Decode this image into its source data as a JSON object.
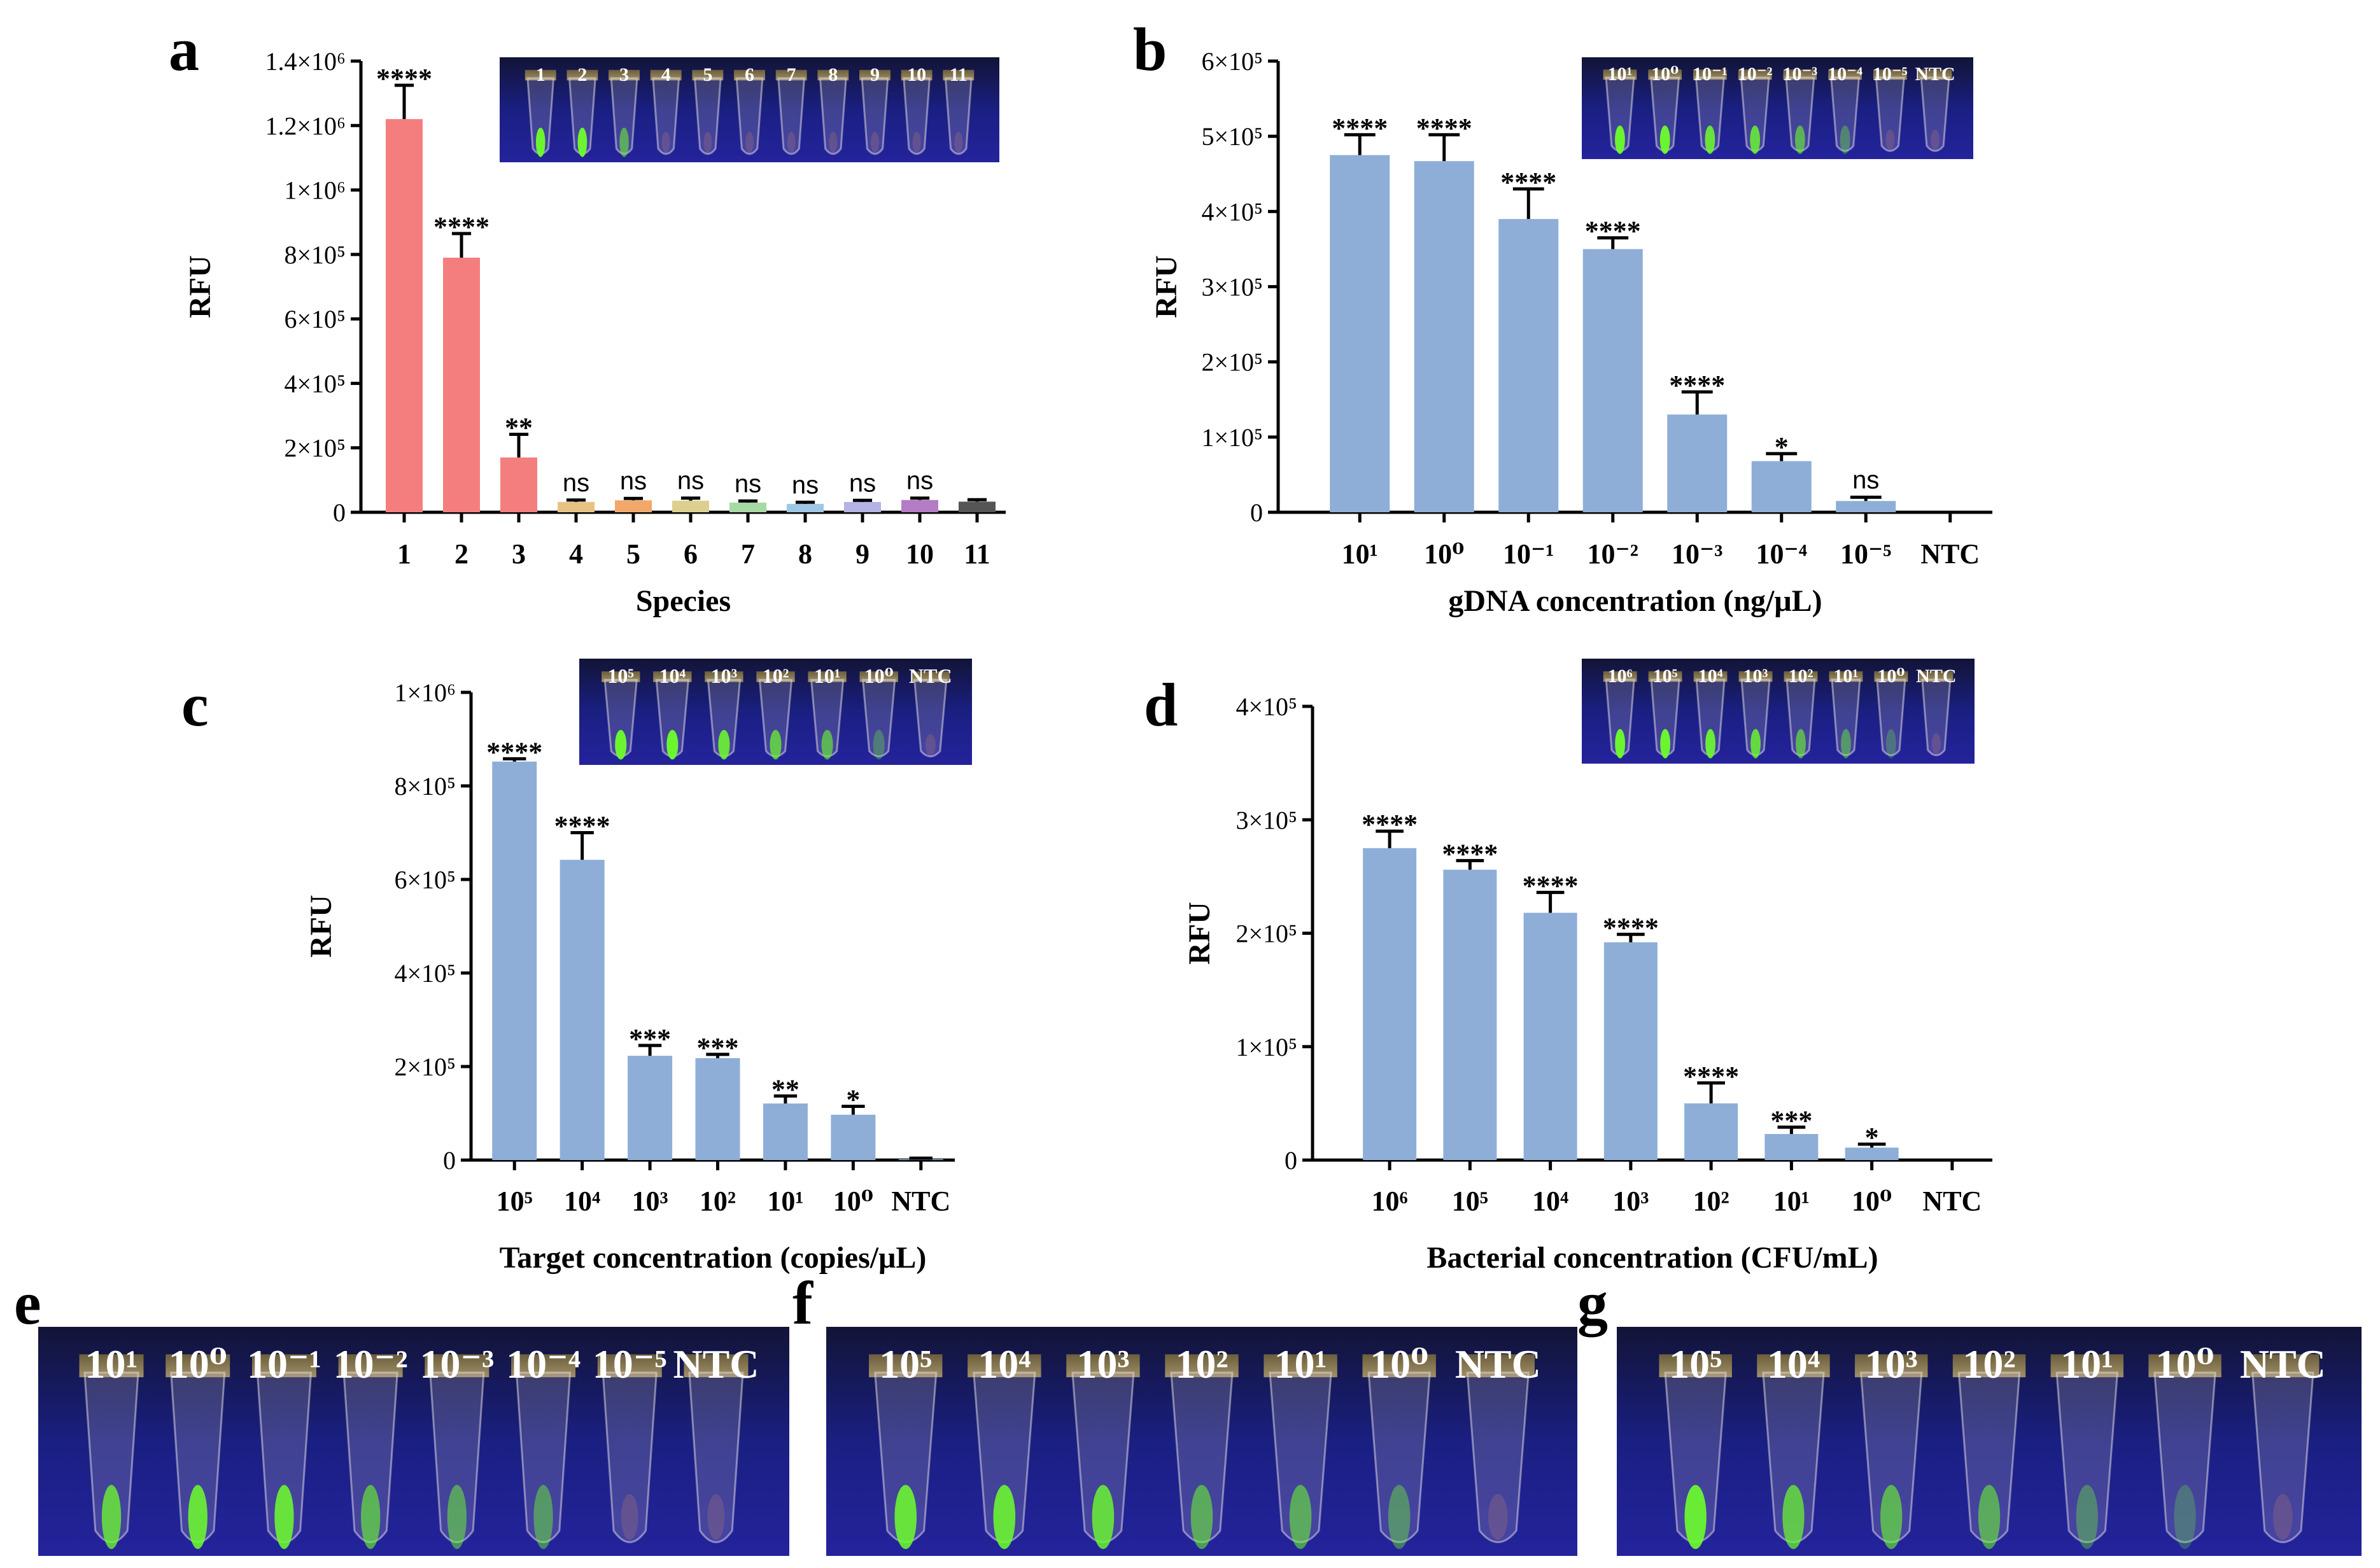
{
  "chart_data": [
    {
      "panel": "a",
      "type": "bar",
      "ylabel": "RFU",
      "xlabel": "Species",
      "ylim": [
        0,
        1400000
      ],
      "yticks": [
        "0",
        "2×10⁵",
        "4×10⁵",
        "6×10⁵",
        "8×10⁵",
        "1×10⁶",
        "1.2×10⁶",
        "1.4×10⁶"
      ],
      "categories": [
        "1",
        "2",
        "3",
        "4",
        "5",
        "6",
        "7",
        "8",
        "9",
        "10",
        "11"
      ],
      "values": [
        1220000,
        790000,
        170000,
        32000,
        37000,
        36000,
        30000,
        26000,
        32000,
        38000,
        33000
      ],
      "errors": [
        105000,
        75000,
        72000,
        6000,
        6000,
        8000,
        5000,
        5000,
        5000,
        6000,
        6000
      ],
      "significance": [
        "****",
        "****",
        "**",
        "ns",
        "ns",
        "ns",
        "ns",
        "ns",
        "ns",
        "ns",
        ""
      ],
      "colors": [
        "#f47e7e",
        "#f47e7e",
        "#f47e7e",
        "#e8c283",
        "#f2a86a",
        "#dcd08e",
        "#a7d9a5",
        "#9ec7e6",
        "#b3b3e6",
        "#b47cc4",
        "#555555"
      ],
      "tube_labels": [
        "1",
        "2",
        "3",
        "4",
        "5",
        "6",
        "7",
        "8",
        "9",
        "10",
        "11"
      ]
    },
    {
      "panel": "b",
      "type": "bar",
      "ylabel": "RFU",
      "xlabel": "gDNA concentration (ng/μL)",
      "ylim": [
        0,
        600000
      ],
      "yticks": [
        "0",
        "1×10⁵",
        "2×10⁵",
        "3×10⁵",
        "4×10⁵",
        "5×10⁵",
        "6×10⁵"
      ],
      "categories": [
        "10¹",
        "10⁰",
        "10⁻¹",
        "10⁻²",
        "10⁻³",
        "10⁻⁴",
        "10⁻⁵",
        "NTC"
      ],
      "values": [
        475000,
        467000,
        390000,
        350000,
        130000,
        68000,
        15000,
        0
      ],
      "errors": [
        27000,
        35000,
        40000,
        15000,
        30000,
        10000,
        5000,
        0
      ],
      "significance": [
        "****",
        "****",
        "****",
        "****",
        "****",
        "*",
        "ns",
        ""
      ],
      "colors": [
        "#8eaed7"
      ],
      "tube_labels": [
        "10¹",
        "10⁰",
        "10⁻¹",
        "10⁻²",
        "10⁻³",
        "10⁻⁴",
        "10⁻⁵",
        "NTC"
      ]
    },
    {
      "panel": "c",
      "type": "bar",
      "ylabel": "RFU",
      "xlabel": "Target concentration (copies/μL)",
      "ylim": [
        0,
        1000000
      ],
      "yticks": [
        "0",
        "2×10⁵",
        "4×10⁵",
        "6×10⁵",
        "8×10⁵",
        "1×10⁶"
      ],
      "categories": [
        "10⁵",
        "10⁴",
        "10³",
        "10²",
        "10¹",
        "10⁰",
        "NTC"
      ],
      "values": [
        852000,
        642000,
        223000,
        218000,
        121000,
        97000,
        2000
      ],
      "errors": [
        6000,
        58000,
        22000,
        8000,
        16000,
        18000,
        2000
      ],
      "significance": [
        "****",
        "****",
        "***",
        "***",
        "**",
        "*",
        ""
      ],
      "colors": [
        "#8eaed7"
      ],
      "tube_labels": [
        "10⁵",
        "10⁴",
        "10³",
        "10²",
        "10¹",
        "10⁰",
        "NTC"
      ]
    },
    {
      "panel": "d",
      "type": "bar",
      "ylabel": "RFU",
      "xlabel": "Bacterial concentration (CFU/mL)",
      "ylim": [
        0,
        400000
      ],
      "yticks": [
        "0",
        "1×10⁵",
        "2×10⁵",
        "3×10⁵",
        "4×10⁵"
      ],
      "categories": [
        "10⁶",
        "10⁵",
        "10⁴",
        "10³",
        "10²",
        "10¹",
        "10⁰",
        "NTC"
      ],
      "values": [
        275000,
        256000,
        218000,
        192000,
        50000,
        23000,
        11000,
        0
      ],
      "errors": [
        15000,
        8000,
        18000,
        7000,
        18000,
        6000,
        3000,
        0
      ],
      "significance": [
        "****",
        "****",
        "****",
        "****",
        "****",
        "***",
        "*",
        ""
      ],
      "colors": [
        "#8eaed7"
      ],
      "tube_labels": [
        "10⁶",
        "10⁵",
        "10⁴",
        "10³",
        "10²",
        "10¹",
        "10⁰",
        "NTC"
      ]
    }
  ],
  "photos": [
    {
      "panel": "e",
      "labels": [
        "10¹",
        "10⁰",
        "10⁻¹",
        "10⁻²",
        "10⁻³",
        "10⁻⁴",
        "10⁻⁵",
        "NTC"
      ]
    },
    {
      "panel": "f",
      "labels": [
        "10⁵",
        "10⁴",
        "10³",
        "10²",
        "10¹",
        "10⁰",
        "NTC"
      ]
    },
    {
      "panel": "g",
      "labels": [
        "10⁵",
        "10⁴",
        "10³",
        "10²",
        "10¹",
        "10⁰",
        "NTC"
      ]
    }
  ]
}
